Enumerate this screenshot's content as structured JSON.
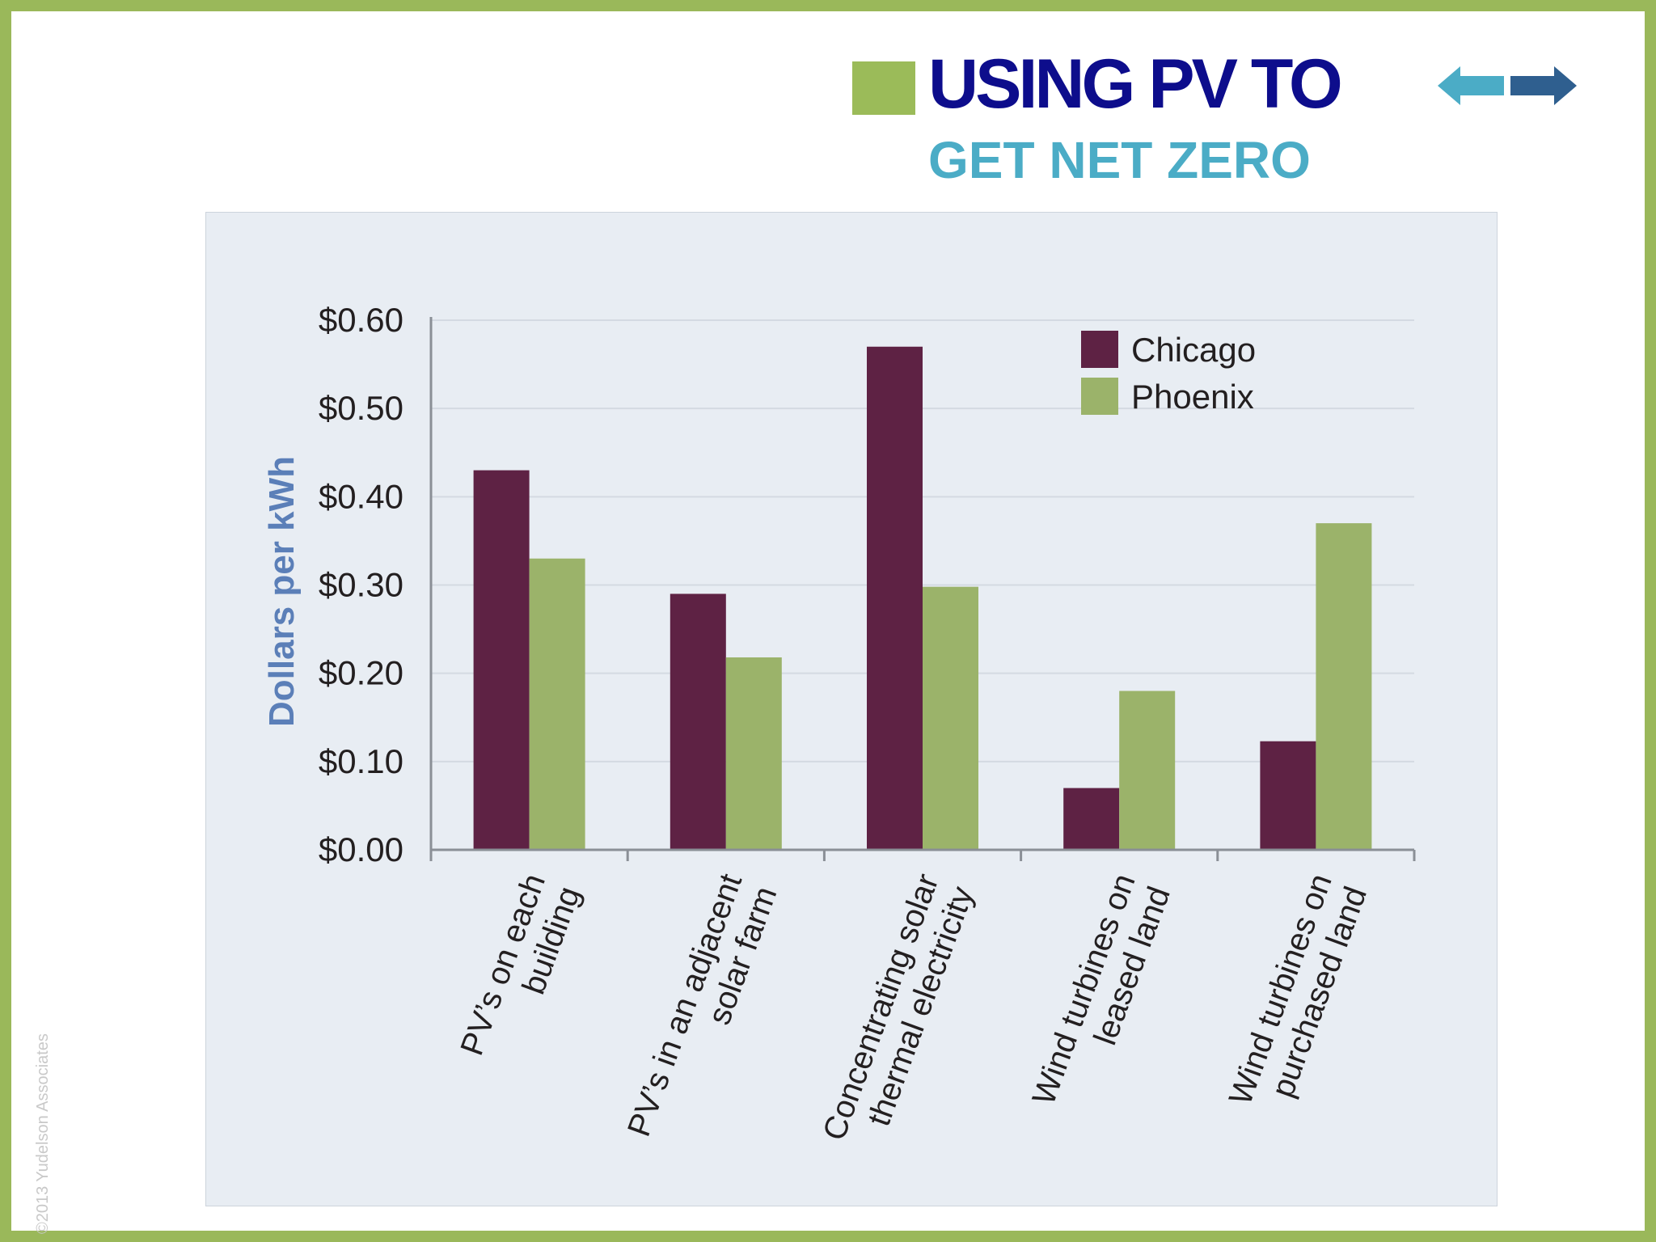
{
  "slide": {
    "title_line1": "USING PV TO",
    "title_line2": "GET NET ZERO",
    "copyright": "©2013 Yudelson Associates",
    "colors": {
      "border": "#9ab85a",
      "title_primary": "#0d0d8c",
      "title_secondary": "#4bacc6",
      "nav_prev_arrow": "#4bacc6",
      "nav_next_arrow": "#2f5f8f"
    },
    "nav": {
      "prev_icon": "arrow-left-icon",
      "next_icon": "arrow-right-icon"
    }
  },
  "chart_data": {
    "type": "bar",
    "title": "",
    "xlabel": "",
    "ylabel": "Dollars per kWh",
    "ylim": [
      0,
      0.6
    ],
    "yticks": [
      0,
      0.1,
      0.2,
      0.3,
      0.4,
      0.5,
      0.6
    ],
    "ytick_labels": [
      "$0.00",
      "$0.10",
      "$0.20",
      "$0.30",
      "$0.40",
      "$0.50",
      "$0.60"
    ],
    "categories": [
      [
        "PV’s on each",
        "building"
      ],
      [
        "PV’s in an adjacent",
        "solar farm"
      ],
      [
        "Concentrating solar",
        "thermal electricity"
      ],
      [
        "Wind turbines on",
        "leased land"
      ],
      [
        "Wind turbines on",
        "purchased land"
      ]
    ],
    "series": [
      {
        "name": "Chicago",
        "color": "#5e2244",
        "values": [
          0.43,
          0.29,
          0.57,
          0.07,
          0.123
        ]
      },
      {
        "name": "Phoenix",
        "color": "#9bb36a",
        "values": [
          0.33,
          0.218,
          0.298,
          0.18,
          0.37
        ]
      }
    ],
    "grid": true,
    "legend_position": "top-right"
  }
}
